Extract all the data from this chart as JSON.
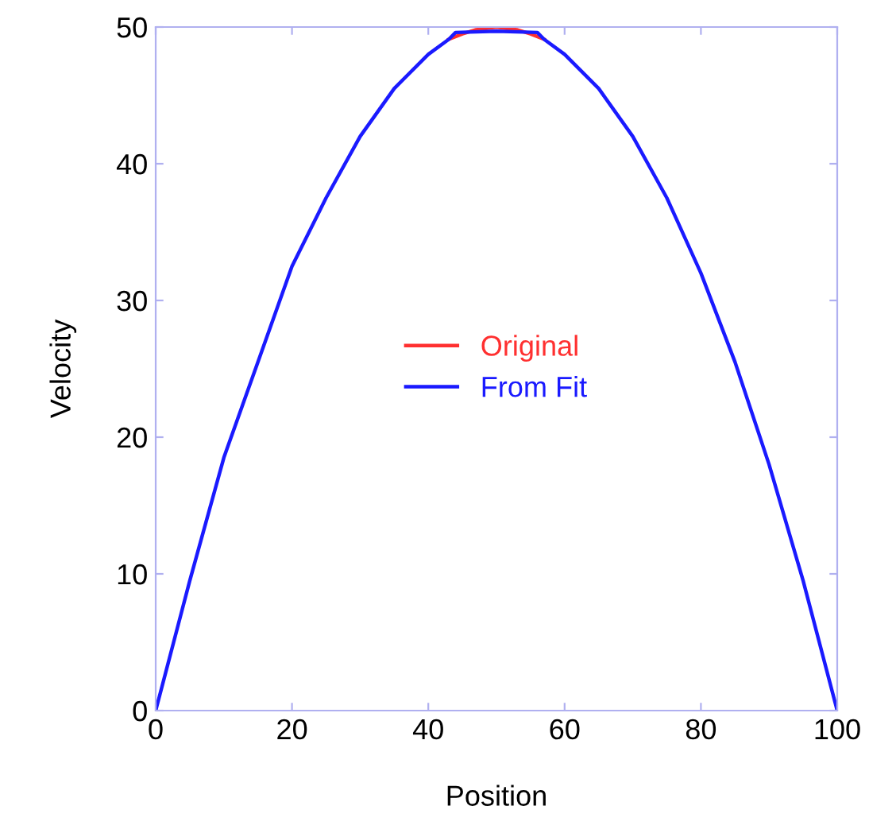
{
  "chart_data": {
    "type": "line",
    "xlabel": "Position",
    "ylabel": "Velocity",
    "xlim": [
      0,
      100
    ],
    "ylim": [
      0,
      50
    ],
    "xticks": [
      0,
      20,
      40,
      60,
      80,
      100
    ],
    "yticks": [
      0,
      10,
      20,
      30,
      40,
      50
    ],
    "grid": false,
    "legend": "center",
    "marker": "none",
    "line_style": "solid",
    "series": [
      {
        "name": "Original",
        "color": "#ff3030",
        "x": [
          43,
          45,
          47,
          50,
          53,
          55,
          57
        ],
        "values": [
          49.1,
          49.5,
          49.8,
          50,
          49.8,
          49.5,
          49.1
        ]
      },
      {
        "name": "From Fit",
        "color": "#1a1aff",
        "x": [
          0,
          5,
          10,
          15,
          20,
          25,
          30,
          35,
          40,
          43,
          44,
          50,
          56,
          57,
          60,
          65,
          70,
          75,
          80,
          85,
          90,
          95,
          100
        ],
        "values": [
          0,
          9.5,
          18.5,
          25.5,
          32.5,
          37.5,
          42,
          45.5,
          48,
          49.1,
          49.6,
          49.7,
          49.6,
          49.1,
          48,
          45.5,
          42,
          37.5,
          32,
          25.5,
          18,
          9.5,
          0
        ]
      }
    ]
  }
}
